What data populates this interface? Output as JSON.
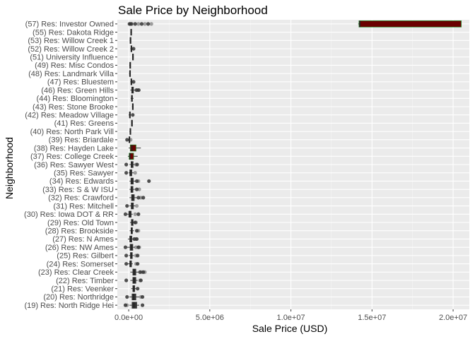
{
  "chart_data": {
    "type": "boxplot",
    "orientation": "horizontal",
    "title": "Sale Price by Neighborhood",
    "xlabel": "Sale Price (USD)",
    "ylabel": "Neighborhood",
    "xlim": [
      -700000,
      21000000
    ],
    "x_ticks": [
      0,
      5000000,
      10000000,
      15000000,
      20000000
    ],
    "x_tick_labels": [
      "0.0e+00",
      "5.0e+06",
      "1.0e+07",
      "1.5e+07",
      "2.0e+07"
    ],
    "grid": true,
    "colors": {
      "panel": "#ebebeb",
      "grid_major": "#ffffff",
      "box_fill_highlight": "#6b0000",
      "box_line": "#333333",
      "point": "#333333"
    },
    "categories": [
      "(57) Res: Investor Owned",
      "(55) Res: Dakota Ridge",
      "(53) Res: Willow Creek 1",
      "(52) Res: Willow Creek 2",
      "(51) University Influence",
      "(49) Res: Misc Condos",
      "(48) Res: Landmark Villa",
      "(47) Res: Bluestem",
      "(46) Res: Green Hills",
      "(44) Res: Bloomington",
      "(43) Res: Stone Brooke",
      "(42) Res: Meadow Village",
      "(41) Res: Greens",
      "(40) Res: North Park Vill",
      "(39) Res: Briardale",
      "(38) Res: Hayden Lake",
      "(37) Res: College Creek",
      "(36) Res: Sawyer West",
      "(35) Res: Sawyer",
      "(34) Res: Edwards",
      "(33) Res: S & W ISU",
      "(32) Res: Crawford",
      "(31) Res: Mitchell",
      "(30) Res: Iowa DOT & RR",
      "(29) Res: Old Town",
      "(28) Res: Brookside",
      "(27) Res: N Ames",
      "(26) Res: NW Ames",
      "(25) Res: Gilbert",
      "(24) Res: Somerset",
      "(23) Res: Clear Creek",
      "(22) Res: Timber",
      "(21) Res: Veenker",
      "(20) Res: Northridge",
      "(19) Res: North Ridge Hei"
    ],
    "boxes": [
      {
        "q1": 14200000,
        "median": 14250000,
        "q3": 20500000,
        "whisker_low": 14150000,
        "whisker_high": 20500000,
        "highlight": true,
        "outliers": [
          50000,
          100000,
          150000,
          200000,
          400000,
          600000,
          800000,
          1000000,
          1200000,
          1400000
        ]
      },
      {
        "q1": 120000,
        "median": 150000,
        "q3": 180000,
        "whisker_low": 100000,
        "whisker_high": 200000,
        "outliers": []
      },
      {
        "q1": 80000,
        "median": 110000,
        "q3": 130000,
        "whisker_low": 60000,
        "whisker_high": 150000,
        "outliers": []
      },
      {
        "q1": 130000,
        "median": 170000,
        "q3": 200000,
        "whisker_low": 100000,
        "whisker_high": 230000,
        "outliers": [
          300000
        ]
      },
      {
        "q1": 230000,
        "median": 260000,
        "q3": 290000,
        "whisker_low": 210000,
        "whisker_high": 310000,
        "outliers": []
      },
      {
        "q1": 60000,
        "median": 90000,
        "q3": 110000,
        "whisker_low": 40000,
        "whisker_high": 130000,
        "outliers": []
      },
      {
        "q1": 50000,
        "median": 70000,
        "q3": 90000,
        "whisker_low": 30000,
        "whisker_high": 110000,
        "outliers": []
      },
      {
        "q1": 130000,
        "median": 160000,
        "q3": 190000,
        "whisker_low": 100000,
        "whisker_high": 230000,
        "outliers": [
          300000
        ]
      },
      {
        "q1": 180000,
        "median": 230000,
        "q3": 300000,
        "whisker_low": 100000,
        "whisker_high": 380000,
        "outliers": [
          480000,
          560000,
          620000
        ]
      },
      {
        "q1": 160000,
        "median": 200000,
        "q3": 240000,
        "whisker_low": 120000,
        "whisker_high": 300000,
        "outliers": []
      },
      {
        "q1": 220000,
        "median": 250000,
        "q3": 280000,
        "whisker_low": 200000,
        "whisker_high": 300000,
        "outliers": []
      },
      {
        "q1": 40000,
        "median": 70000,
        "q3": 100000,
        "whisker_low": 0,
        "whisker_high": 130000,
        "outliers": [
          250000
        ]
      },
      {
        "q1": 170000,
        "median": 190000,
        "q3": 210000,
        "whisker_low": 150000,
        "whisker_high": 230000,
        "outliers": []
      },
      {
        "q1": 70000,
        "median": 100000,
        "q3": 120000,
        "whisker_low": 50000,
        "whisker_high": 140000,
        "outliers": []
      },
      {
        "q1": 10000,
        "median": 40000,
        "q3": 70000,
        "whisker_low": -50000,
        "whisker_high": 100000,
        "outliers": [
          -100000,
          120000
        ]
      },
      {
        "q1": 100000,
        "median": 200000,
        "q3": 450000,
        "whisker_low": 0,
        "whisker_high": 750000,
        "highlight": true,
        "outliers": []
      },
      {
        "q1": 30000,
        "median": 80000,
        "q3": 300000,
        "whisker_low": -50000,
        "whisker_high": 550000,
        "highlight": true,
        "outliers": []
      },
      {
        "q1": 140000,
        "median": 200000,
        "q3": 280000,
        "whisker_low": 50000,
        "whisker_high": 360000,
        "outliers": [
          -150000,
          450000,
          520000
        ]
      },
      {
        "q1": 60000,
        "median": 120000,
        "q3": 200000,
        "whisker_low": 0,
        "whisker_high": 300000,
        "outliers": [
          -150000,
          400000
        ]
      },
      {
        "q1": 130000,
        "median": 200000,
        "q3": 290000,
        "whisker_low": 50000,
        "whisker_high": 400000,
        "outliers": [
          500000,
          600000,
          1250000
        ]
      },
      {
        "q1": 130000,
        "median": 190000,
        "q3": 270000,
        "whisker_low": 50000,
        "whisker_high": 380000,
        "outliers": [
          500000,
          650000
        ]
      },
      {
        "q1": 170000,
        "median": 240000,
        "q3": 350000,
        "whisker_low": 50000,
        "whisker_high": 500000,
        "outliers": [
          600000,
          750000,
          900000
        ]
      },
      {
        "q1": 150000,
        "median": 210000,
        "q3": 300000,
        "whisker_low": 50000,
        "whisker_high": 400000,
        "outliers": [
          -100000,
          500000
        ]
      },
      {
        "q1": 0,
        "median": 80000,
        "q3": 160000,
        "whisker_low": -100000,
        "whisker_high": 250000,
        "outliers": [
          -200000,
          400000,
          600000
        ]
      },
      {
        "q1": 160000,
        "median": 210000,
        "q3": 280000,
        "whisker_low": 80000,
        "whisker_high": 360000,
        "outliers": [
          400000,
          450000
        ]
      },
      {
        "q1": 140000,
        "median": 180000,
        "q3": 240000,
        "whisker_low": 60000,
        "whisker_high": 330000,
        "outliers": [
          500000,
          600000
        ]
      },
      {
        "q1": 60000,
        "median": 120000,
        "q3": 200000,
        "whisker_low": -50000,
        "whisker_high": 300000,
        "outliers": [
          350000,
          450000,
          500000
        ]
      },
      {
        "q1": 80000,
        "median": 160000,
        "q3": 260000,
        "whisker_low": -100000,
        "whisker_high": 380000,
        "outliers": [
          -200000,
          450000,
          600000,
          650000
        ]
      },
      {
        "q1": 100000,
        "median": 160000,
        "q3": 230000,
        "whisker_low": 0,
        "whisker_high": 330000,
        "outliers": [
          -150000,
          450000,
          550000
        ]
      },
      {
        "q1": 60000,
        "median": 110000,
        "q3": 180000,
        "whisker_low": -50000,
        "whisker_high": 250000,
        "outliers": [
          -150000,
          450000,
          550000
        ]
      },
      {
        "q1": 250000,
        "median": 340000,
        "q3": 450000,
        "whisker_low": 100000,
        "whisker_high": 600000,
        "outliers": [
          700000,
          800000,
          900000,
          1000000
        ]
      },
      {
        "q1": 250000,
        "median": 330000,
        "q3": 450000,
        "whisker_low": 100000,
        "whisker_high": 550000,
        "outliers": [
          -150000,
          700000,
          750000
        ]
      },
      {
        "q1": 250000,
        "median": 300000,
        "q3": 380000,
        "whisker_low": 150000,
        "whisker_high": 450000,
        "outliers": [
          550000
        ]
      },
      {
        "q1": 200000,
        "median": 300000,
        "q3": 450000,
        "whisker_low": 50000,
        "whisker_high": 650000,
        "outliers": [
          -100000,
          750000,
          850000
        ]
      },
      {
        "q1": 200000,
        "median": 320000,
        "q3": 500000,
        "whisker_low": 50000,
        "whisker_high": 650000,
        "outliers": [
          -200000,
          -100000,
          850000
        ]
      }
    ]
  }
}
